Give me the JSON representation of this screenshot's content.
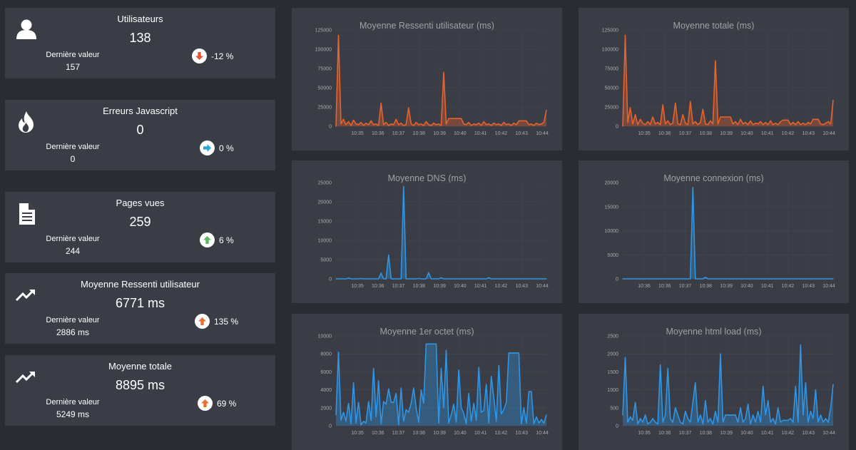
{
  "cards": [
    {
      "title": "Utilisateurs",
      "value": "138",
      "last_label": "Dernière valeur",
      "last_value": "157",
      "change": "-12 %",
      "trend": "down",
      "icon": "user-icon"
    },
    {
      "title": "Erreurs Javascript",
      "value": "0",
      "last_label": "Dernière valeur",
      "last_value": "0",
      "change": "0 %",
      "trend": "flat",
      "icon": "fire-icon"
    },
    {
      "title": "Pages vues",
      "value": "259",
      "last_label": "Dernière valeur",
      "last_value": "244",
      "change": "6 %",
      "trend": "up",
      "icon": "document-icon"
    },
    {
      "title": "Moyenne Ressenti utilisateur",
      "value": "6771 ms",
      "last_label": "Dernière valeur",
      "last_value": "2886 ms",
      "change": "135 %",
      "trend": "up",
      "icon": "trending-up-icon"
    },
    {
      "title": "Moyenne totale",
      "value": "8895 ms",
      "last_label": "Dernière valeur",
      "last_value": "5249 ms",
      "change": "69 %",
      "trend": "up",
      "icon": "trending-up-icon"
    }
  ],
  "colors": {
    "down": "#e8542a",
    "flat": "#2aa7d6",
    "up_green": "#5cb85c",
    "up_orange": "#e8702a",
    "series_orange": "#e8622c",
    "series_blue": "#2f95e4"
  },
  "chart_data": [
    {
      "type": "line",
      "title": "Moyenne Ressenti utilisateur (ms)",
      "color": "orange",
      "ylim": [
        0,
        125000
      ],
      "yticks": [
        "0",
        "25000",
        "50000",
        "75000",
        "100000",
        "125000"
      ],
      "xticks": [
        "10:35",
        "10:36",
        "10:37",
        "10:38",
        "10:39",
        "10:40",
        "10:41",
        "10:42",
        "10:43",
        "10:44"
      ],
      "series": [
        {
          "values": [
            0,
            118000,
            3000,
            9000,
            2000,
            6000,
            1000,
            8000,
            3000,
            2000,
            5000,
            1000,
            4000,
            2000,
            7000,
            2000,
            3000,
            1000,
            30000,
            2000,
            5000,
            1000,
            3000,
            2000,
            9000,
            2000,
            4000,
            1000,
            2000,
            24000,
            3000,
            1000,
            5000,
            2000,
            3000,
            1000,
            6000,
            2000,
            1000,
            4000,
            2000,
            3000,
            1000,
            70000,
            3000,
            10000,
            10000,
            10000,
            10000,
            10000,
            10000,
            3000,
            2000,
            5000,
            1000,
            3000,
            2000,
            4000,
            1000,
            6000,
            2000,
            3000,
            1000,
            4000,
            2000,
            3000,
            1000,
            5000,
            2000,
            3000,
            1000,
            4000,
            2000,
            7000,
            7000,
            7000,
            7000,
            2000,
            3000,
            1000,
            4000,
            2000,
            3000,
            5000,
            21000
          ]
        }
      ]
    },
    {
      "type": "line",
      "title": "Moyenne totale (ms)",
      "color": "orange",
      "ylim": [
        0,
        125000
      ],
      "yticks": [
        "0",
        "25000",
        "50000",
        "75000",
        "100000",
        "125000"
      ],
      "xticks": [
        "10:35",
        "10:36",
        "10:37",
        "10:38",
        "10:39",
        "10:40",
        "10:41",
        "10:42",
        "10:43",
        "10:44"
      ],
      "series": [
        {
          "values": [
            0,
            118000,
            5000,
            24000,
            3000,
            15000,
            2000,
            9000,
            4000,
            2000,
            6000,
            2000,
            12000,
            3000,
            5000,
            2000,
            28000,
            3000,
            7000,
            2000,
            4000,
            30000,
            3000,
            2000,
            15000,
            4000,
            2000,
            32000,
            3000,
            6000,
            2000,
            5000,
            22000,
            3000,
            2000,
            7000,
            3000,
            85000,
            3000,
            12000,
            12000,
            12000,
            12000,
            12000,
            3000,
            6000,
            2000,
            9000,
            3000,
            5000,
            2000,
            7000,
            2000,
            4000,
            3000,
            6000,
            2000,
            5000,
            2000,
            7000,
            2000,
            4000,
            2000,
            6000,
            8000,
            8000,
            8000,
            2000,
            5000,
            2000,
            6000,
            2000,
            4000,
            2000,
            5000,
            3000,
            9000,
            9000,
            9000,
            3000,
            2000,
            4000,
            6000,
            3000,
            34000
          ]
        }
      ]
    },
    {
      "type": "line",
      "title": "Moyenne DNS (ms)",
      "color": "blue",
      "ylim": [
        0,
        25000
      ],
      "yticks": [
        "0",
        "5000",
        "10000",
        "15000",
        "20000",
        "25000"
      ],
      "xticks": [
        "10:35",
        "10:36",
        "10:37",
        "10:38",
        "10:39",
        "10:40",
        "10:41",
        "10:42",
        "10:43",
        "10:44"
      ],
      "series": [
        {
          "values": [
            0,
            0,
            0,
            0,
            0,
            200,
            0,
            0,
            0,
            0,
            100,
            0,
            0,
            0,
            0,
            0,
            0,
            0,
            1500,
            0,
            0,
            6200,
            0,
            0,
            0,
            0,
            0,
            24000,
            0,
            0,
            0,
            0,
            0,
            100,
            0,
            0,
            0,
            1600,
            0,
            0,
            0,
            0,
            300,
            0,
            0,
            0,
            0,
            0,
            0,
            0,
            0,
            0,
            0,
            0,
            0,
            0,
            0,
            0,
            0,
            0,
            0,
            300,
            0,
            0,
            0,
            0,
            0,
            0,
            0,
            0,
            0,
            0,
            0,
            0,
            0,
            0,
            0,
            0,
            0,
            0,
            0,
            0,
            0,
            0,
            0
          ]
        }
      ]
    },
    {
      "type": "line",
      "title": "Moyenne connexion (ms)",
      "color": "blue",
      "ylim": [
        0,
        20000
      ],
      "yticks": [
        "0",
        "5000",
        "10000",
        "15000",
        "20000"
      ],
      "xticks": [
        "10:36",
        "10:36",
        "10:37",
        "10:38",
        "10:39",
        "10:40",
        "10:41",
        "10:42",
        "10:43",
        "10:44"
      ],
      "series": [
        {
          "values": [
            0,
            0,
            0,
            0,
            0,
            0,
            0,
            0,
            0,
            0,
            0,
            0,
            0,
            0,
            0,
            0,
            0,
            0,
            0,
            0,
            0,
            0,
            0,
            0,
            0,
            0,
            0,
            0,
            19000,
            0,
            0,
            0,
            0,
            300,
            0,
            0,
            0,
            0,
            0,
            0,
            0,
            0,
            0,
            0,
            0,
            0,
            0,
            0,
            0,
            0,
            0,
            0,
            0,
            0,
            0,
            0,
            0,
            0,
            0,
            0,
            0,
            0,
            0,
            0,
            0,
            0,
            0,
            0,
            0,
            0,
            0,
            0,
            0,
            0,
            0,
            0,
            0,
            0,
            0,
            0,
            0,
            0,
            0,
            0,
            0
          ]
        }
      ]
    },
    {
      "type": "line",
      "title": "Moyenne 1er octet (ms)",
      "color": "blue",
      "ylim": [
        0,
        10000
      ],
      "yticks": [
        "0",
        "2000",
        "4000",
        "6000",
        "8000",
        "10000"
      ],
      "xticks": [
        "10:35",
        "10:36",
        "10:37",
        "10:38",
        "10:39",
        "10:40",
        "10:41",
        "10:42",
        "10:43",
        "10:44"
      ],
      "series": [
        {
          "values": [
            1200,
            8200,
            600,
            1500,
            500,
            2500,
            200,
            4800,
            300,
            2600,
            100,
            500,
            300,
            2700,
            600,
            6400,
            1000,
            5000,
            200,
            2700,
            2400,
            4100,
            2600,
            2600,
            3600,
            100,
            4200,
            500,
            1800,
            1500,
            2500,
            4200,
            2000,
            400,
            4000,
            2500,
            9100,
            9100,
            9100,
            9100,
            9100,
            300,
            6400,
            2000,
            8400,
            300,
            1200,
            2400,
            400,
            6200,
            2000,
            1400,
            200,
            3600,
            500,
            2500,
            600,
            6500,
            1500,
            1700,
            4600,
            300,
            5500,
            3100,
            500,
            6700,
            1300,
            1800,
            2600,
            8100,
            8100,
            8100,
            8100,
            8100,
            200,
            2000,
            300,
            3800,
            3800,
            200,
            1000,
            300,
            700,
            300,
            1200
          ]
        }
      ]
    },
    {
      "type": "line",
      "title": "Moyenne html load (ms)",
      "color": "blue",
      "ylim": [
        0,
        2500
      ],
      "yticks": [
        "0",
        "500",
        "1000",
        "1500",
        "2000",
        "2500"
      ],
      "xticks": [
        "10:35",
        "10:36",
        "10:37",
        "10:38",
        "10:39",
        "10:40",
        "10:41",
        "10:42",
        "10:43",
        "10:44"
      ],
      "series": [
        {
          "values": [
            300,
            1900,
            100,
            250,
            150,
            650,
            50,
            200,
            100,
            300,
            50,
            100,
            200,
            100,
            50,
            1700,
            100,
            300,
            1600,
            200,
            100,
            500,
            300,
            100,
            50,
            400,
            200,
            100,
            650,
            1200,
            100,
            300,
            50,
            700,
            100,
            200,
            50,
            400,
            100,
            2000,
            100,
            300,
            300,
            300,
            300,
            300,
            100,
            500,
            100,
            200,
            600,
            50,
            300,
            100,
            400,
            100,
            1100,
            300,
            700,
            100,
            200,
            50,
            500,
            100,
            150,
            150,
            150,
            200,
            100,
            1100,
            100,
            2250,
            300,
            1200,
            100,
            400,
            200,
            1000,
            100,
            300,
            100,
            200,
            100,
            500,
            1150
          ]
        }
      ]
    }
  ]
}
